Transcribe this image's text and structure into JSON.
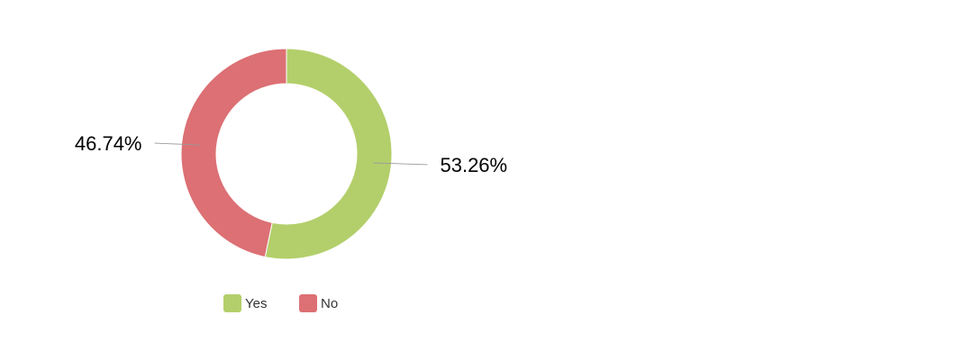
{
  "chart_data": {
    "type": "pie",
    "variant": "donut",
    "title": "",
    "legend_position": "bottom",
    "slices": [
      {
        "name": "Yes",
        "value": 53.26,
        "label": "53.26%",
        "color": "#b3cf6b"
      },
      {
        "name": "No",
        "value": 46.74,
        "label": "46.74%",
        "color": "#dc7074"
      }
    ]
  }
}
